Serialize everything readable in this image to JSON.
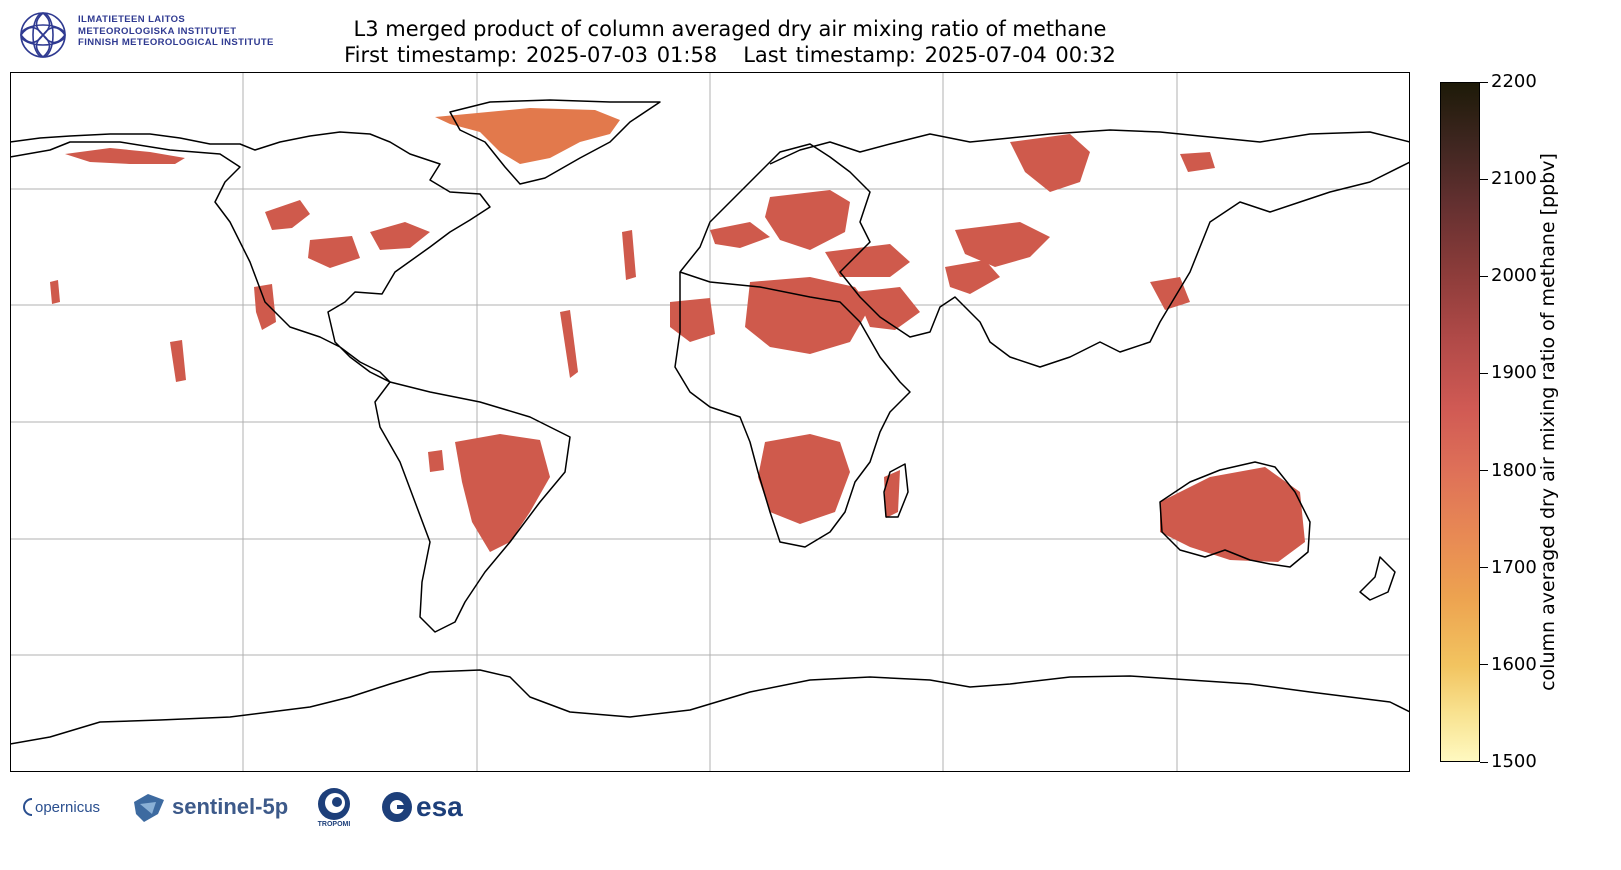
{
  "institute": {
    "lines": [
      "ILMATIETEEN LAITOS",
      "METEOROLOGISKA INSTITUTET",
      "FINNISH METEOROLOGICAL INSTITUTE"
    ],
    "color": "#2f3a91"
  },
  "title": {
    "line1": "L3 merged product of column averaged dry air mixing ratio of methane",
    "line2": "First timestamp: 2025-07-03 01:58   Last timestamp: 2025-07-04 00:32"
  },
  "map": {
    "projection": "plate carree",
    "gridlines": true,
    "coastline_color": "#000000",
    "data_regions": [
      "Greenland",
      "western North America",
      "northern Africa",
      "Arabian Peninsula",
      "central Asia",
      "Siberia",
      "South America",
      "southern Africa",
      "Madagascar",
      "Australia"
    ]
  },
  "colorbar": {
    "label": "column averaged dry air mixing ratio of methane [ppbv]",
    "min": 1500,
    "max": 2200,
    "ticks": [
      "1500",
      "1600",
      "1700",
      "1800",
      "1900",
      "2000",
      "2100",
      "2200"
    ],
    "colormap": [
      "#fff9c0",
      "#f2c460",
      "#e88a54",
      "#d05a54",
      "#8c3c3a",
      "#3f2620",
      "#1d1a08"
    ]
  },
  "logos": {
    "copernicus": "opernicus",
    "sentinel": "sentinel-5p",
    "tropomi": "TROPOMI",
    "esa": "esa"
  }
}
